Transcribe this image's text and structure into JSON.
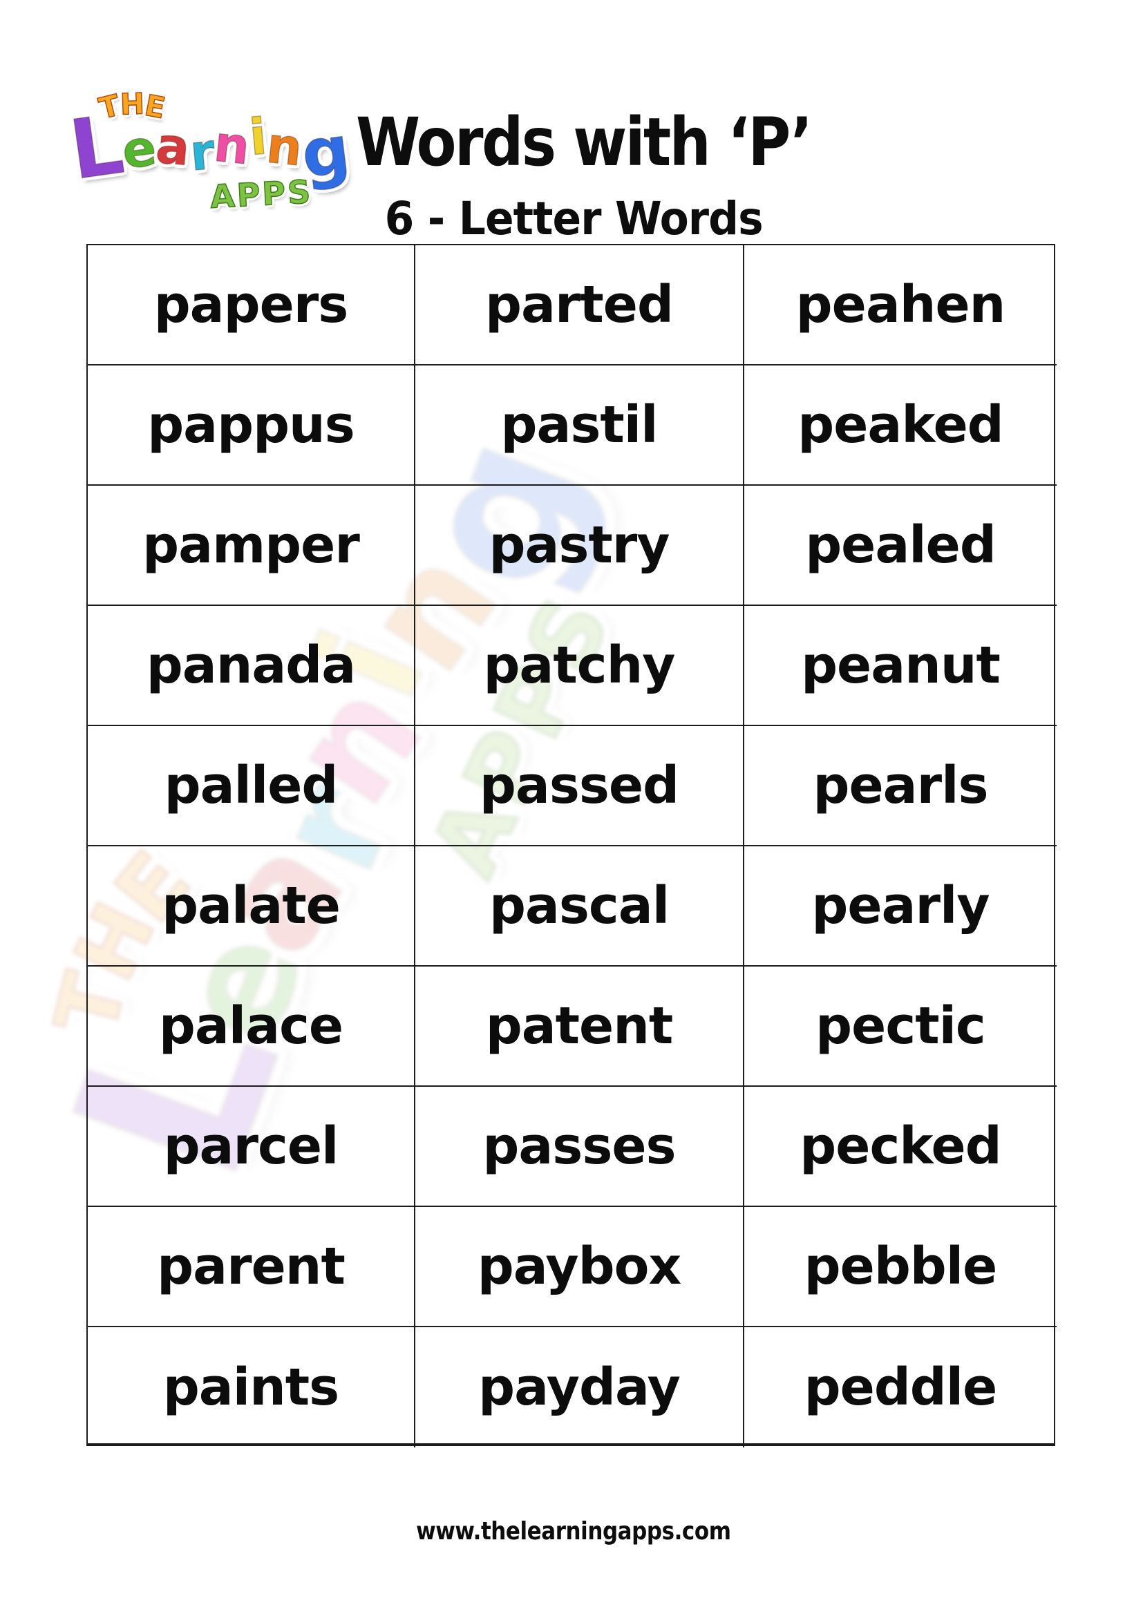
{
  "header": {
    "title": "Words with ‘P’",
    "subtitle": "6 - Letter Words"
  },
  "logo": {
    "the": [
      {
        "ch": "T"
      },
      {
        "ch": "H"
      },
      {
        "ch": "E"
      }
    ],
    "the_color": "#f7a821",
    "learning": [
      {
        "ch": "L",
        "color": "#8e44d0"
      },
      {
        "ch": "e",
        "color": "#53b62c"
      },
      {
        "ch": "a",
        "color": "#d6393c"
      },
      {
        "ch": "r",
        "color": "#2ab5d8"
      },
      {
        "ch": "n",
        "color": "#ee4fa4"
      },
      {
        "ch": "i",
        "color": "#f0d22c"
      },
      {
        "ch": "n",
        "color": "#ea7f1b"
      },
      {
        "ch": "g",
        "color": "#2e6de4"
      }
    ],
    "apps": "APPS",
    "apps_color": "#7dc242"
  },
  "table": {
    "rows": [
      [
        "papers",
        "parted",
        "peahen"
      ],
      [
        "pappus",
        "pastil",
        "peaked"
      ],
      [
        "pamper",
        "pastry",
        "pealed"
      ],
      [
        "panada",
        "patchy",
        "peanut"
      ],
      [
        "palled",
        "passed",
        "pearls"
      ],
      [
        "palate",
        "pascal",
        "pearly"
      ],
      [
        "palace",
        "patent",
        "pectic"
      ],
      [
        "parcel",
        "passes",
        "pecked"
      ],
      [
        "parent",
        "paybox",
        "pebble"
      ],
      [
        "paints",
        "payday",
        "peddle"
      ]
    ]
  },
  "footer": {
    "url": "www.thelearningapps.com"
  },
  "colors": {
    "text": "#0d0d0d",
    "border": "#1c1c1c",
    "background": "#ffffff"
  }
}
